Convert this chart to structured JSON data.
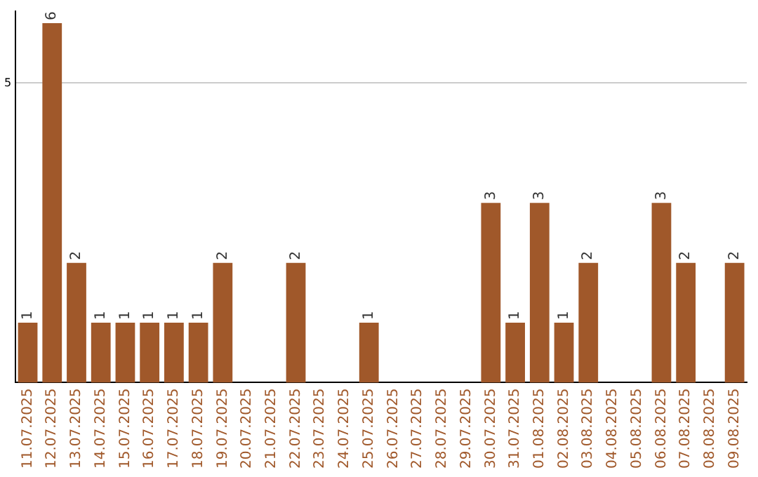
{
  "chart_data": {
    "type": "bar",
    "categories": [
      "11.07.2025",
      "12.07.2025",
      "13.07.2025",
      "14.07.2025",
      "15.07.2025",
      "16.07.2025",
      "17.07.2025",
      "18.07.2025",
      "19.07.2025",
      "20.07.2025",
      "21.07.2025",
      "22.07.2025",
      "23.07.2025",
      "24.07.2025",
      "25.07.2025",
      "26.07.2025",
      "27.07.2025",
      "28.07.2025",
      "29.07.2025",
      "30.07.2025",
      "31.07.2025",
      "01.08.2025",
      "02.08.2025",
      "03.08.2025",
      "04.08.2025",
      "05.08.2025",
      "06.08.2025",
      "07.08.2025",
      "08.08.2025",
      "09.08.2025"
    ],
    "values": [
      1,
      6,
      2,
      1,
      1,
      1,
      1,
      1,
      2,
      0,
      0,
      2,
      0,
      0,
      1,
      0,
      0,
      0,
      0,
      3,
      1,
      3,
      1,
      2,
      0,
      0,
      3,
      2,
      0,
      2
    ],
    "value_labels": [
      "1",
      "6",
      "2",
      "1",
      "1",
      "1",
      "1",
      "1",
      "2",
      null,
      null,
      "2",
      null,
      null,
      "1",
      null,
      null,
      null,
      null,
      "3",
      "1",
      "3",
      "1",
      "2",
      null,
      null,
      "3",
      "2",
      null,
      "2"
    ],
    "color": "#a0582a",
    "ylim": [
      0,
      6.2
    ],
    "yticks": [
      5
    ],
    "grid": "y"
  }
}
